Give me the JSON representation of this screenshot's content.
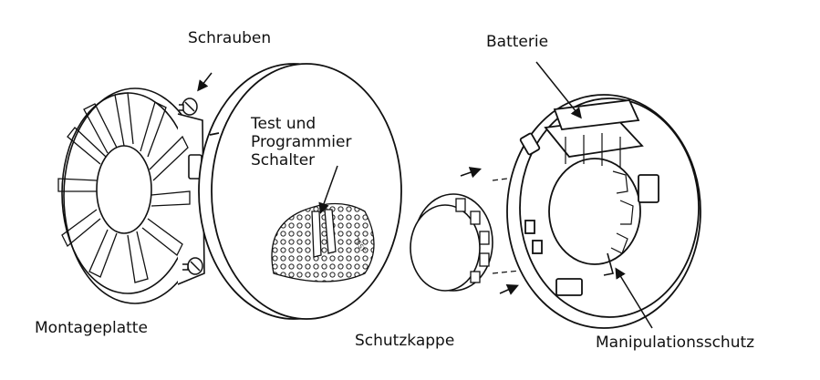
{
  "labels": {
    "schrauben": "Schrauben",
    "batterie": "Batterie",
    "test_line1": "Test und",
    "test_line2": "Programmier",
    "test_line3": "Schalter",
    "montageplatte": "Montageplatte",
    "schutzkappe": "Schutzkappe",
    "manipulationsschutz": "Manipulationsschutz"
  }
}
